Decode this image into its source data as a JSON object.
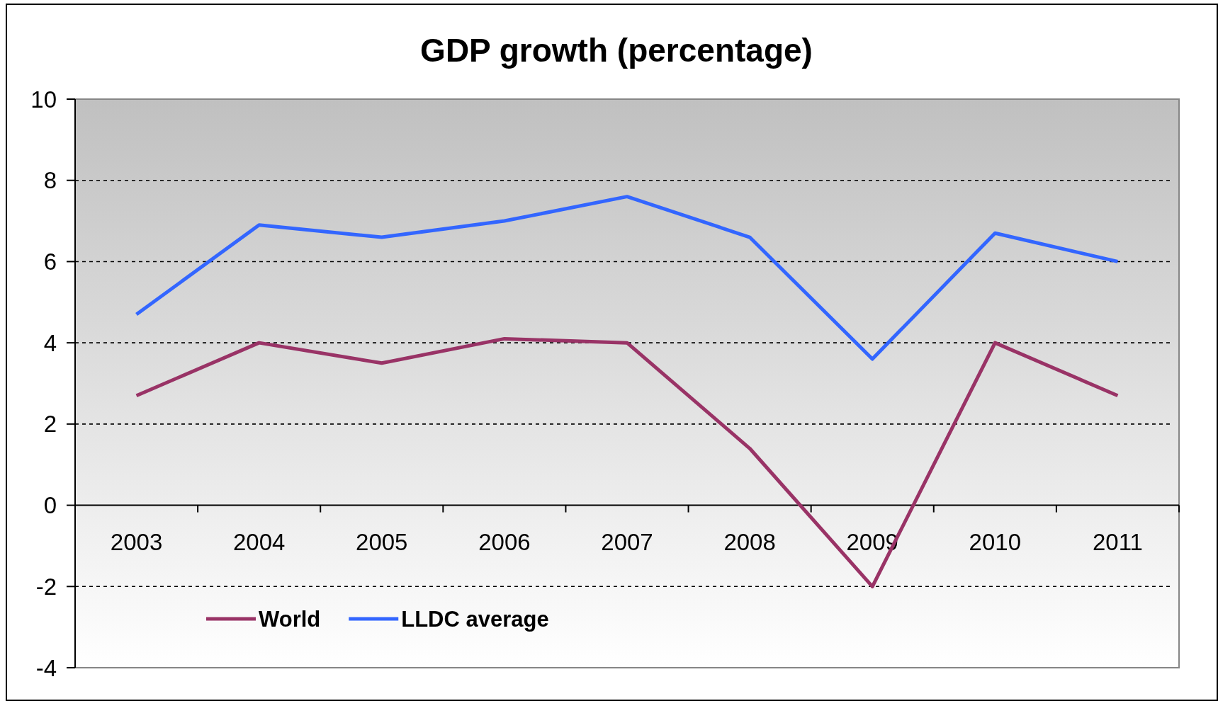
{
  "chart_data": {
    "type": "line",
    "title": "GDP growth (percentage)",
    "categories": [
      "2003",
      "2004",
      "2005",
      "2006",
      "2007",
      "2008",
      "2009",
      "2010",
      "2011"
    ],
    "series": [
      {
        "name": "World",
        "color": "#993366",
        "values": [
          2.7,
          4.0,
          3.5,
          4.1,
          4.0,
          1.4,
          -2.0,
          4.0,
          2.7
        ]
      },
      {
        "name": "LLDC average",
        "color": "#3366ff",
        "values": [
          4.7,
          6.9,
          6.6,
          7.0,
          7.6,
          6.6,
          3.6,
          6.7,
          6.0
        ]
      }
    ],
    "ylim": [
      -4,
      10
    ],
    "yticks": [
      -4,
      -2,
      0,
      2,
      4,
      6,
      8,
      10
    ],
    "grid": "y",
    "legend": "bottom left",
    "line_style": "solid"
  }
}
